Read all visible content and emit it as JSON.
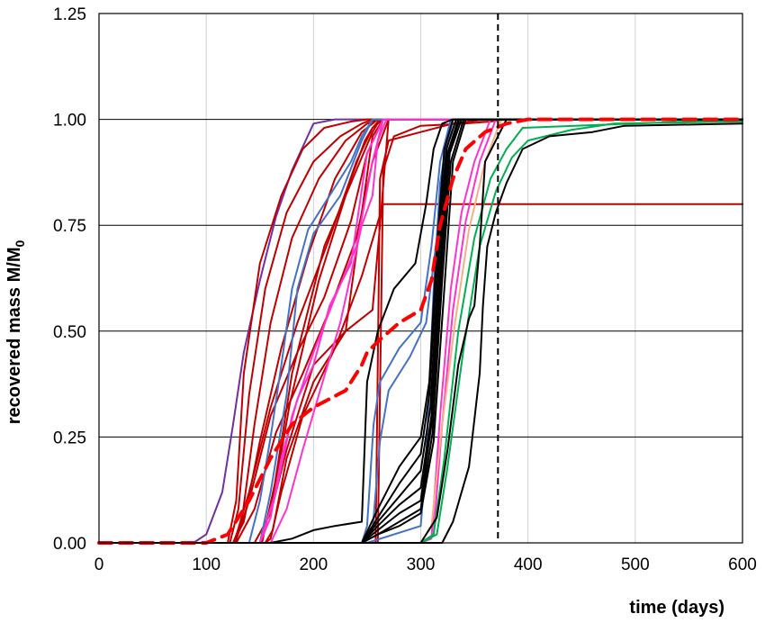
{
  "chart_data": {
    "type": "line",
    "title": "",
    "xlabel": "time (days)",
    "ylabel": "recovered mass M/M",
    "ylabel_subscript": "0",
    "xlim": [
      0,
      600
    ],
    "ylim": [
      0,
      1.25
    ],
    "x_ticks": [
      "0",
      "100",
      "200",
      "300",
      "400",
      "500",
      "600"
    ],
    "y_ticks": [
      "0.00",
      "0.25",
      "0.50",
      "0.75",
      "1.00",
      "1.25"
    ],
    "grid": {
      "x": true,
      "y": true
    },
    "legend": "none",
    "annotations": [
      {
        "type": "vertical-dashed-line",
        "x": 372,
        "color": "#000000"
      }
    ],
    "series": [
      {
        "color": "#7030A0",
        "x": [
          0,
          88,
          100,
          115,
          125,
          135,
          150,
          165,
          180,
          200,
          220,
          600
        ],
        "y": [
          0,
          0,
          0.02,
          0.12,
          0.28,
          0.45,
          0.62,
          0.77,
          0.88,
          0.99,
          1.0,
          1.0
        ]
      },
      {
        "color": "#C00000",
        "x": [
          0,
          120,
          128,
          135,
          150,
          170,
          190,
          210,
          235,
          250,
          600
        ],
        "y": [
          0,
          0,
          0.1,
          0.4,
          0.66,
          0.82,
          0.93,
          0.98,
          0.995,
          1.0,
          1.0
        ]
      },
      {
        "color": "#C00000",
        "x": [
          0,
          122,
          130,
          140,
          155,
          175,
          200,
          225,
          245,
          255,
          600
        ],
        "y": [
          0,
          0,
          0.08,
          0.35,
          0.6,
          0.78,
          0.9,
          0.96,
          0.99,
          1.0,
          1.0
        ]
      },
      {
        "color": "#C00000",
        "x": [
          0,
          125,
          133,
          145,
          160,
          180,
          205,
          230,
          250,
          260,
          600
        ],
        "y": [
          0,
          0,
          0.05,
          0.28,
          0.52,
          0.72,
          0.86,
          0.95,
          0.99,
          1.0,
          1.0
        ]
      },
      {
        "color": "#C00000",
        "x": [
          0,
          125,
          135,
          150,
          170,
          195,
          220,
          245,
          260,
          600
        ],
        "y": [
          0,
          0,
          0.05,
          0.24,
          0.46,
          0.68,
          0.86,
          0.97,
          1.0,
          1.0
        ]
      },
      {
        "color": "#C00000",
        "x": [
          0,
          126,
          140,
          160,
          185,
          215,
          240,
          255,
          265,
          600
        ],
        "y": [
          0,
          0,
          0.12,
          0.32,
          0.52,
          0.72,
          0.9,
          0.98,
          1.0,
          1.0
        ]
      },
      {
        "color": "#C00000",
        "x": [
          0,
          127,
          140,
          160,
          185,
          210,
          235,
          250,
          265,
          600
        ],
        "y": [
          0,
          0,
          0.1,
          0.3,
          0.45,
          0.58,
          0.76,
          0.92,
          1.0,
          1.0
        ]
      },
      {
        "color": "#C00000",
        "x": [
          0,
          128,
          145,
          165,
          190,
          215,
          240,
          255,
          270,
          600
        ],
        "y": [
          0,
          0,
          0.08,
          0.26,
          0.4,
          0.55,
          0.72,
          0.9,
          1.0,
          1.0
        ]
      },
      {
        "color": "#C00000",
        "x": [
          0,
          145,
          160,
          175,
          200,
          230,
          245,
          255,
          265,
          600
        ],
        "y": [
          0,
          0,
          0.07,
          0.22,
          0.42,
          0.5,
          0.78,
          0.96,
          1.0,
          1.0
        ]
      },
      {
        "color": "#C00000",
        "x": [
          0,
          150,
          162,
          178,
          205,
          235,
          248,
          255,
          262,
          600
        ],
        "y": [
          0,
          0,
          0.1,
          0.33,
          0.62,
          0.86,
          0.95,
          0.98,
          1.0,
          1.0
        ]
      },
      {
        "color": "#C00000",
        "x": [
          0,
          152,
          164,
          180,
          210,
          240,
          255,
          262,
          600
        ],
        "y": [
          0,
          0,
          0.14,
          0.4,
          0.7,
          0.88,
          0.97,
          1.0,
          1.0
        ]
      },
      {
        "color": "#C00000",
        "x": [
          0,
          155,
          160,
          170,
          190,
          220,
          245,
          265,
          600
        ],
        "y": [
          0,
          0,
          0.01,
          0.12,
          0.3,
          0.46,
          0.63,
          0.8,
          0.8
        ]
      },
      {
        "color": "#C00000",
        "x": [
          0,
          155,
          162,
          175,
          200,
          230,
          255,
          262,
          270,
          600
        ],
        "y": [
          0,
          0,
          0.03,
          0.2,
          0.38,
          0.5,
          0.55,
          0.75,
          1.0,
          1.0
        ]
      },
      {
        "color": "#C00000",
        "x": [
          0,
          258,
          262,
          270,
          300,
          330,
          345,
          355,
          370,
          600
        ],
        "y": [
          0,
          0,
          0.86,
          0.95,
          0.97,
          0.99,
          0.995,
          0.998,
          1.0,
          1.0
        ]
      },
      {
        "color": "#C00000",
        "x": [
          0,
          260,
          265,
          275,
          300,
          340,
          365,
          380,
          600
        ],
        "y": [
          0,
          0,
          0.88,
          0.96,
          0.985,
          0.99,
          0.995,
          1.0,
          1.0
        ]
      },
      {
        "color": "#4472C4",
        "x": [
          0,
          140,
          150,
          160,
          170,
          180,
          195,
          215,
          235,
          245,
          255,
          600
        ],
        "y": [
          0,
          0,
          0.1,
          0.25,
          0.42,
          0.6,
          0.74,
          0.82,
          0.9,
          0.96,
          1.0,
          1.0
        ]
      },
      {
        "color": "#4472C4",
        "x": [
          0,
          150,
          160,
          175,
          185,
          200,
          225,
          245,
          255,
          600
        ],
        "y": [
          0,
          0,
          0.12,
          0.35,
          0.6,
          0.73,
          0.82,
          0.95,
          1.0,
          1.0
        ]
      },
      {
        "color": "#4472C4",
        "x": [
          0,
          245,
          250,
          256,
          262,
          280,
          300,
          310,
          318,
          328,
          600
        ],
        "y": [
          0,
          0,
          0.04,
          0.28,
          0.38,
          0.46,
          0.52,
          0.7,
          0.9,
          1.0,
          1.0
        ]
      },
      {
        "color": "#4472C4",
        "x": [
          0,
          248,
          255,
          262,
          270,
          290,
          305,
          315,
          322,
          330,
          600
        ],
        "y": [
          0,
          0,
          0.03,
          0.24,
          0.36,
          0.44,
          0.52,
          0.72,
          0.9,
          1.0,
          1.0
        ]
      },
      {
        "color": "#4472C4",
        "x": [
          0,
          250,
          300,
          305,
          312,
          318,
          325,
          330,
          600
        ],
        "y": [
          0,
          0,
          0.04,
          0.2,
          0.6,
          0.85,
          0.96,
          1.0,
          1.0
        ]
      },
      {
        "color": "#FF33CC",
        "x": [
          0,
          150,
          165,
          180,
          200,
          220,
          240,
          255,
          265,
          600
        ],
        "y": [
          0,
          0,
          0.12,
          0.3,
          0.45,
          0.58,
          0.7,
          0.9,
          1.0,
          1.0
        ]
      },
      {
        "color": "#FF33CC",
        "x": [
          0,
          150,
          160,
          170,
          185,
          200,
          215,
          235,
          250,
          265,
          600
        ],
        "y": [
          0,
          0,
          0.06,
          0.2,
          0.34,
          0.42,
          0.56,
          0.66,
          0.92,
          1.0,
          1.0
        ]
      },
      {
        "color": "#FF33CC",
        "x": [
          0,
          160,
          175,
          190,
          205,
          225,
          245,
          255,
          260,
          268,
          600
        ],
        "y": [
          0,
          0,
          0.08,
          0.22,
          0.35,
          0.52,
          0.75,
          0.82,
          0.95,
          1.0,
          1.0
        ]
      },
      {
        "color": "#FF33CC",
        "x": [
          0,
          300,
          310,
          318,
          328,
          338,
          350,
          365,
          600
        ],
        "y": [
          0,
          0,
          0.01,
          0.3,
          0.6,
          0.78,
          0.9,
          1.0,
          1.0
        ]
      },
      {
        "color": "#FF33CC",
        "x": [
          0,
          300,
          312,
          320,
          330,
          342,
          355,
          370,
          600
        ],
        "y": [
          0,
          0,
          0.02,
          0.28,
          0.55,
          0.76,
          0.9,
          1.0,
          1.0
        ]
      },
      {
        "color": "#F4B183",
        "x": [
          0,
          300,
          310,
          320,
          332,
          345,
          360,
          375,
          600
        ],
        "y": [
          0,
          0,
          0.04,
          0.28,
          0.52,
          0.74,
          0.9,
          1.0,
          1.0
        ]
      },
      {
        "color": "#00B050",
        "x": [
          0,
          300,
          312,
          322,
          335,
          350,
          365,
          380,
          395,
          600
        ],
        "y": [
          0,
          0,
          0.02,
          0.2,
          0.5,
          0.72,
          0.86,
          0.93,
          0.98,
          1.0
        ]
      },
      {
        "color": "#00B050",
        "x": [
          0,
          300,
          315,
          325,
          340,
          355,
          370,
          385,
          400,
          440,
          480,
          600
        ],
        "y": [
          0,
          0,
          0.02,
          0.18,
          0.46,
          0.7,
          0.83,
          0.91,
          0.95,
          0.975,
          0.99,
          0.995
        ]
      },
      {
        "color": "#000000",
        "x": [
          0,
          160,
          180,
          200,
          220,
          245,
          250,
          260,
          275,
          295,
          305,
          312,
          320,
          330,
          600
        ],
        "y": [
          0,
          0,
          0.01,
          0.03,
          0.04,
          0.05,
          0.38,
          0.5,
          0.6,
          0.66,
          0.8,
          0.93,
          0.99,
          1.0,
          1.0
        ]
      },
      {
        "color": "#000000",
        "x": [
          0,
          245,
          260,
          280,
          300,
          308,
          315,
          322,
          330,
          600
        ],
        "y": [
          0,
          0,
          0.08,
          0.18,
          0.25,
          0.38,
          0.7,
          0.93,
          1.0,
          1.0
        ]
      },
      {
        "color": "#000000",
        "x": [
          0,
          245,
          260,
          280,
          300,
          308,
          316,
          324,
          333,
          600
        ],
        "y": [
          0,
          0,
          0.06,
          0.14,
          0.21,
          0.35,
          0.7,
          0.93,
          1.0,
          1.0
        ]
      },
      {
        "color": "#000000",
        "x": [
          0,
          245,
          260,
          280,
          300,
          309,
          317,
          325,
          335,
          600
        ],
        "y": [
          0,
          0,
          0.05,
          0.11,
          0.17,
          0.32,
          0.68,
          0.92,
          1.0,
          1.0
        ]
      },
      {
        "color": "#000000",
        "x": [
          0,
          245,
          260,
          280,
          300,
          310,
          318,
          326,
          336,
          600
        ],
        "y": [
          0,
          0,
          0.04,
          0.09,
          0.13,
          0.3,
          0.66,
          0.92,
          1.0,
          1.0
        ]
      },
      {
        "color": "#000000",
        "x": [
          0,
          245,
          260,
          280,
          300,
          310,
          319,
          327,
          338,
          600
        ],
        "y": [
          0,
          0,
          0.03,
          0.07,
          0.1,
          0.28,
          0.64,
          0.92,
          1.0,
          1.0
        ]
      },
      {
        "color": "#000000",
        "x": [
          0,
          245,
          260,
          280,
          300,
          311,
          320,
          328,
          340,
          600
        ],
        "y": [
          0,
          0,
          0.02,
          0.05,
          0.08,
          0.26,
          0.62,
          0.9,
          1.0,
          1.0
        ]
      },
      {
        "color": "#000000",
        "x": [
          0,
          245,
          260,
          280,
          300,
          312,
          322,
          330,
          342,
          600
        ],
        "y": [
          0,
          0,
          0.02,
          0.04,
          0.07,
          0.24,
          0.6,
          0.9,
          1.0,
          1.0
        ]
      },
      {
        "color": "#000000",
        "x": [
          0,
          300,
          315,
          325,
          335,
          345,
          350,
          355,
          360,
          380,
          600
        ],
        "y": [
          0,
          0,
          0.06,
          0.22,
          0.42,
          0.53,
          0.56,
          0.7,
          0.9,
          1.0,
          1.0
        ]
      },
      {
        "color": "#000000",
        "x": [
          0,
          320,
          330,
          345,
          355,
          358,
          362,
          370,
          380,
          395,
          420,
          460,
          490,
          600
        ],
        "y": [
          0,
          0,
          0.05,
          0.18,
          0.4,
          0.56,
          0.7,
          0.78,
          0.85,
          0.93,
          0.96,
          0.97,
          0.985,
          0.99
        ]
      },
      {
        "color": "#FF0000",
        "dashed": true,
        "x": [
          0,
          100,
          120,
          140,
          160,
          180,
          200,
          230,
          245,
          250,
          262,
          280,
          300,
          310,
          318,
          330,
          342,
          360,
          380,
          400,
          600
        ],
        "y": [
          0,
          0,
          0.02,
          0.1,
          0.2,
          0.28,
          0.32,
          0.36,
          0.42,
          0.45,
          0.48,
          0.52,
          0.55,
          0.62,
          0.75,
          0.86,
          0.93,
          0.97,
          0.99,
          1.0,
          1.0
        ]
      }
    ]
  }
}
